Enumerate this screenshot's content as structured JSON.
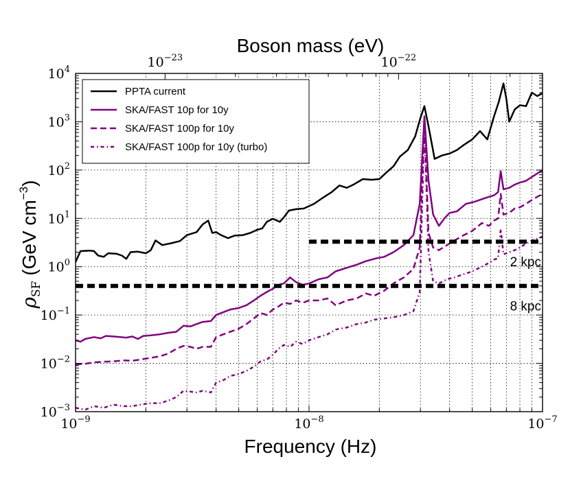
{
  "chart_data": {
    "type": "line",
    "title": "",
    "top_axis_label": "Boson mass (eV)",
    "top_ticks": [
      {
        "value": 1e-23,
        "base": "10",
        "exp": "−23"
      },
      {
        "value": 1e-22,
        "base": "10",
        "exp": "−22"
      }
    ],
    "xlabel": "Frequency (Hz)",
    "ylabel": {
      "rho": "ρ",
      "sub": "SF",
      "rest": " (GeV cm",
      "exp": "−3",
      "close": ")"
    },
    "x_scale": "log",
    "y_scale": "log",
    "xlim": [
      1e-09,
      1e-07
    ],
    "ylim": [
      0.001,
      10000
    ],
    "grid": true,
    "legend_position": "upper-left",
    "x_ticks": [
      {
        "value": 1e-09,
        "base": "10",
        "exp": "−9"
      },
      {
        "value": 1e-08,
        "base": "10",
        "exp": "−8"
      },
      {
        "value": 1e-07,
        "base": "10",
        "exp": "−7"
      }
    ],
    "y_ticks": [
      {
        "value": 0.001,
        "base": "10",
        "exp": "−3"
      },
      {
        "value": 0.01,
        "base": "10",
        "exp": "−2"
      },
      {
        "value": 0.1,
        "base": "10",
        "exp": "−1"
      },
      {
        "value": 1,
        "base": "10",
        "exp": "0"
      },
      {
        "value": 10,
        "base": "10",
        "exp": "1"
      },
      {
        "value": 100,
        "base": "10",
        "exp": "2"
      },
      {
        "value": 1000,
        "base": "10",
        "exp": "3"
      },
      {
        "value": 10000,
        "base": "10",
        "exp": "4"
      }
    ],
    "series": [
      {
        "name": "PPTA current",
        "color": "#000000",
        "dash": "solid",
        "points": [
          [
            1e-09,
            1.25
          ],
          [
            1.05e-09,
            2.1
          ],
          [
            1.15e-09,
            2.15
          ],
          [
            1.2e-09,
            2.1
          ],
          [
            1.25e-09,
            1.7
          ],
          [
            1.32e-09,
            1.6
          ],
          [
            1.38e-09,
            1.9
          ],
          [
            1.5e-09,
            1.85
          ],
          [
            1.58e-09,
            1.7
          ],
          [
            1.65e-09,
            1.45
          ],
          [
            1.72e-09,
            2.0
          ],
          [
            1.85e-09,
            2.05
          ],
          [
            2e-09,
            1.9
          ],
          [
            2.1e-09,
            2.2
          ],
          [
            2.2e-09,
            3.5
          ],
          [
            2.35e-09,
            2.8
          ],
          [
            2.6e-09,
            3.1
          ],
          [
            2.8e-09,
            3.4
          ],
          [
            3e-09,
            4.5
          ],
          [
            3.3e-09,
            5.2
          ],
          [
            3.5e-09,
            7.5
          ],
          [
            3.7e-09,
            9.0
          ],
          [
            3.85e-09,
            5.0
          ],
          [
            4e-09,
            5.2
          ],
          [
            4.2e-09,
            4.5
          ],
          [
            4.5e-09,
            3.9
          ],
          [
            4.8e-09,
            4.4
          ],
          [
            5.2e-09,
            4.5
          ],
          [
            5.6e-09,
            5.0
          ],
          [
            6e-09,
            5.8
          ],
          [
            6.3e-09,
            6.2
          ],
          [
            6.6e-09,
            8.5
          ],
          [
            7e-09,
            9.8
          ],
          [
            7.5e-09,
            8.5
          ],
          [
            7.8e-09,
            10.5
          ],
          [
            8.2e-09,
            14.5
          ],
          [
            8.8e-09,
            15.5
          ],
          [
            9.5e-09,
            16
          ],
          [
            1.05e-08,
            20
          ],
          [
            1.15e-08,
            27
          ],
          [
            1.25e-08,
            35
          ],
          [
            1.35e-08,
            48
          ],
          [
            1.45e-08,
            43
          ],
          [
            1.55e-08,
            50
          ],
          [
            1.7e-08,
            65
          ],
          [
            1.85e-08,
            63
          ],
          [
            2e-08,
            65
          ],
          [
            2.15e-08,
            90
          ],
          [
            2.3e-08,
            120
          ],
          [
            2.45e-08,
            190
          ],
          [
            2.65e-08,
            260
          ],
          [
            2.85e-08,
            500
          ],
          [
            3e-08,
            1200
          ],
          [
            3.12e-08,
            2100
          ],
          [
            3.25e-08,
            800
          ],
          [
            3.45e-08,
            170
          ],
          [
            3.7e-08,
            200
          ],
          [
            4e-08,
            220
          ],
          [
            4.3e-08,
            260
          ],
          [
            4.6e-08,
            330
          ],
          [
            5e-08,
            430
          ],
          [
            5.4e-08,
            640
          ],
          [
            5.8e-08,
            430
          ],
          [
            6.2e-08,
            1300
          ],
          [
            6.5e-08,
            2600
          ],
          [
            6.8e-08,
            6200
          ],
          [
            7e-08,
            3000
          ],
          [
            7.2e-08,
            1000
          ],
          [
            7.6e-08,
            1800
          ],
          [
            8e-08,
            2200
          ],
          [
            8.5e-08,
            2100
          ],
          [
            9e-08,
            4000
          ],
          [
            9.5e-08,
            3400
          ],
          [
            1e-07,
            3900
          ]
        ]
      },
      {
        "name": "SKA/FAST 10p for 10y",
        "color": "#800080",
        "dash": "solid",
        "points": [
          [
            1e-09,
            0.03
          ],
          [
            1.05e-09,
            0.028
          ],
          [
            1.1e-09,
            0.032
          ],
          [
            1.2e-09,
            0.035
          ],
          [
            1.28e-09,
            0.033
          ],
          [
            1.35e-09,
            0.037
          ],
          [
            1.45e-09,
            0.036
          ],
          [
            1.55e-09,
            0.035
          ],
          [
            1.65e-09,
            0.034
          ],
          [
            1.75e-09,
            0.036
          ],
          [
            1.85e-09,
            0.032
          ],
          [
            1.95e-09,
            0.037
          ],
          [
            2.1e-09,
            0.038
          ],
          [
            2.3e-09,
            0.04
          ],
          [
            2.5e-09,
            0.043
          ],
          [
            2.7e-09,
            0.045
          ],
          [
            2.9e-09,
            0.06
          ],
          [
            3.1e-09,
            0.058
          ],
          [
            3.3e-09,
            0.065
          ],
          [
            3.5e-09,
            0.072
          ],
          [
            3.8e-09,
            0.075
          ],
          [
            4e-09,
            0.1
          ],
          [
            4.3e-09,
            0.115
          ],
          [
            4.6e-09,
            0.13
          ],
          [
            5e-09,
            0.14
          ],
          [
            5.4e-09,
            0.16
          ],
          [
            5.8e-09,
            0.2
          ],
          [
            6.2e-09,
            0.25
          ],
          [
            6.6e-09,
            0.3
          ],
          [
            7e-09,
            0.35
          ],
          [
            7.4e-09,
            0.42
          ],
          [
            7.8e-09,
            0.45
          ],
          [
            8.3e-09,
            0.6
          ],
          [
            8.8e-09,
            0.48
          ],
          [
            9.4e-09,
            0.42
          ],
          [
            1e-08,
            0.45
          ],
          [
            1.1e-08,
            0.55
          ],
          [
            1.2e-08,
            0.6
          ],
          [
            1.3e-08,
            0.8
          ],
          [
            1.45e-08,
            0.95
          ],
          [
            1.6e-08,
            1.1
          ],
          [
            1.75e-08,
            1.3
          ],
          [
            1.95e-08,
            1.5
          ],
          [
            2.1e-08,
            1.6
          ],
          [
            2.3e-08,
            2.0
          ],
          [
            2.55e-08,
            2.8
          ],
          [
            2.8e-08,
            4.5
          ],
          [
            2.98e-08,
            20
          ],
          [
            3.12e-08,
            1300
          ],
          [
            3.25e-08,
            60
          ],
          [
            3.4e-08,
            12
          ],
          [
            3.6e-08,
            7
          ],
          [
            3.8e-08,
            10
          ],
          [
            4e-08,
            13
          ],
          [
            4.3e-08,
            14
          ],
          [
            4.7e-08,
            20
          ],
          [
            5.1e-08,
            22
          ],
          [
            5.5e-08,
            25
          ],
          [
            5.9e-08,
            28
          ],
          [
            6.2e-08,
            30
          ],
          [
            6.45e-08,
            35
          ],
          [
            6.62e-08,
            95
          ],
          [
            6.8e-08,
            40
          ],
          [
            7.2e-08,
            43
          ],
          [
            7.6e-08,
            50
          ],
          [
            8e-08,
            55
          ],
          [
            8.5e-08,
            60
          ],
          [
            9e-08,
            72
          ],
          [
            9.5e-08,
            85
          ],
          [
            1e-07,
            100
          ]
        ]
      },
      {
        "name": "SKA/FAST 100p for 10y",
        "color": "#800080",
        "dash": "dashed",
        "points": [
          [
            1e-09,
            0.0095
          ],
          [
            1.1e-09,
            0.0098
          ],
          [
            1.2e-09,
            0.0105
          ],
          [
            1.32e-09,
            0.0108
          ],
          [
            1.45e-09,
            0.011
          ],
          [
            1.6e-09,
            0.0115
          ],
          [
            1.75e-09,
            0.0113
          ],
          [
            1.9e-09,
            0.012
          ],
          [
            2.1e-09,
            0.013
          ],
          [
            2.3e-09,
            0.014
          ],
          [
            2.5e-09,
            0.016
          ],
          [
            2.7e-09,
            0.02
          ],
          [
            2.9e-09,
            0.023
          ],
          [
            3.1e-09,
            0.022
          ],
          [
            3.3e-09,
            0.02
          ],
          [
            3.5e-09,
            0.022
          ],
          [
            3.8e-09,
            0.022
          ],
          [
            4e-09,
            0.035
          ],
          [
            4.3e-09,
            0.04
          ],
          [
            4.6e-09,
            0.045
          ],
          [
            5e-09,
            0.052
          ],
          [
            5.4e-09,
            0.065
          ],
          [
            5.8e-09,
            0.085
          ],
          [
            6.2e-09,
            0.11
          ],
          [
            6.6e-09,
            0.1
          ],
          [
            7e-09,
            0.13
          ],
          [
            7.4e-09,
            0.15
          ],
          [
            7.8e-09,
            0.18
          ],
          [
            8.3e-09,
            0.17
          ],
          [
            8.8e-09,
            0.2
          ],
          [
            9.4e-09,
            0.18
          ],
          [
            1e-08,
            0.2
          ],
          [
            1.1e-08,
            0.2
          ],
          [
            1.2e-08,
            0.22
          ],
          [
            1.3e-08,
            0.16
          ],
          [
            1.45e-08,
            0.2
          ],
          [
            1.6e-08,
            0.22
          ],
          [
            1.75e-08,
            0.28
          ],
          [
            1.9e-08,
            0.25
          ],
          [
            2.1e-08,
            0.32
          ],
          [
            2.3e-08,
            0.45
          ],
          [
            2.55e-08,
            0.6
          ],
          [
            2.8e-08,
            0.9
          ],
          [
            2.98e-08,
            2.5
          ],
          [
            3.12e-08,
            1000
          ],
          [
            3.25e-08,
            5
          ],
          [
            3.4e-08,
            2.5
          ],
          [
            3.6e-08,
            2.2
          ],
          [
            3.9e-08,
            2.8
          ],
          [
            4.2e-08,
            3.5
          ],
          [
            4.6e-08,
            4.5
          ],
          [
            5e-08,
            5.5
          ],
          [
            5.5e-08,
            8
          ],
          [
            5.9e-08,
            7
          ],
          [
            6.2e-08,
            9
          ],
          [
            6.45e-08,
            10
          ],
          [
            6.62e-08,
            32
          ],
          [
            6.8e-08,
            12
          ],
          [
            7.2e-08,
            13
          ],
          [
            7.6e-08,
            16
          ],
          [
            8e-08,
            17
          ],
          [
            8.5e-08,
            20
          ],
          [
            9e-08,
            24
          ],
          [
            9.5e-08,
            28
          ],
          [
            1e-07,
            32
          ]
        ]
      },
      {
        "name": "SKA/FAST 100p for 10y (turbo)",
        "color": "#800080",
        "dash": "dashdot",
        "points": [
          [
            1e-09,
            0.0012
          ],
          [
            1.1e-09,
            0.0011
          ],
          [
            1.2e-09,
            0.0013
          ],
          [
            1.32e-09,
            0.0012
          ],
          [
            1.45e-09,
            0.0014
          ],
          [
            1.6e-09,
            0.0013
          ],
          [
            1.75e-09,
            0.0013
          ],
          [
            1.9e-09,
            0.0014
          ],
          [
            2.1e-09,
            0.0015
          ],
          [
            2.3e-09,
            0.0015
          ],
          [
            2.5e-09,
            0.0017
          ],
          [
            2.7e-09,
            0.002
          ],
          [
            2.9e-09,
            0.0027
          ],
          [
            3.1e-09,
            0.0026
          ],
          [
            3.3e-09,
            0.0025
          ],
          [
            3.5e-09,
            0.0027
          ],
          [
            3.8e-09,
            0.0025
          ],
          [
            4e-09,
            0.004
          ],
          [
            4.3e-09,
            0.0045
          ],
          [
            4.6e-09,
            0.0055
          ],
          [
            5e-09,
            0.006
          ],
          [
            5.4e-09,
            0.007
          ],
          [
            5.8e-09,
            0.0085
          ],
          [
            6.2e-09,
            0.011
          ],
          [
            6.6e-09,
            0.012
          ],
          [
            7e-09,
            0.015
          ],
          [
            7.4e-09,
            0.02
          ],
          [
            7.8e-09,
            0.024
          ],
          [
            8.3e-09,
            0.022
          ],
          [
            8.8e-09,
            0.028
          ],
          [
            9.4e-09,
            0.025
          ],
          [
            1e-08,
            0.03
          ],
          [
            1.1e-08,
            0.035
          ],
          [
            1.2e-08,
            0.04
          ],
          [
            1.3e-08,
            0.05
          ],
          [
            1.45e-08,
            0.055
          ],
          [
            1.6e-08,
            0.065
          ],
          [
            1.75e-08,
            0.07
          ],
          [
            1.9e-08,
            0.08
          ],
          [
            2.1e-08,
            0.085
          ],
          [
            2.3e-08,
            0.09
          ],
          [
            2.55e-08,
            0.1
          ],
          [
            2.8e-08,
            0.12
          ],
          [
            2.98e-08,
            0.3
          ],
          [
            3.12e-08,
            800
          ],
          [
            3.25e-08,
            2
          ],
          [
            3.4e-08,
            0.5
          ],
          [
            3.6e-08,
            0.45
          ],
          [
            3.9e-08,
            0.55
          ],
          [
            4.2e-08,
            0.6
          ],
          [
            4.6e-08,
            0.7
          ],
          [
            5e-08,
            0.8
          ],
          [
            5.5e-08,
            1.0
          ],
          [
            5.9e-08,
            1.2
          ],
          [
            6.2e-08,
            1.4
          ],
          [
            6.45e-08,
            1.5
          ],
          [
            6.62e-08,
            6
          ],
          [
            6.8e-08,
            1.8
          ],
          [
            7.2e-08,
            2.0
          ],
          [
            7.6e-08,
            2.2
          ],
          [
            8e-08,
            2.5
          ],
          [
            8.5e-08,
            3.0
          ],
          [
            9e-08,
            3.5
          ],
          [
            9.5e-08,
            3.8
          ],
          [
            1e-07,
            4.2
          ]
        ]
      }
    ],
    "hlines": [
      {
        "y": 3.3,
        "x_start": 1e-08,
        "x_end": 1e-07,
        "label": "2 kpc",
        "color": "#000000"
      },
      {
        "y": 0.4,
        "x_start": 1e-09,
        "x_end": 1e-07,
        "label": "8 kpc",
        "color": "#000000"
      }
    ]
  }
}
